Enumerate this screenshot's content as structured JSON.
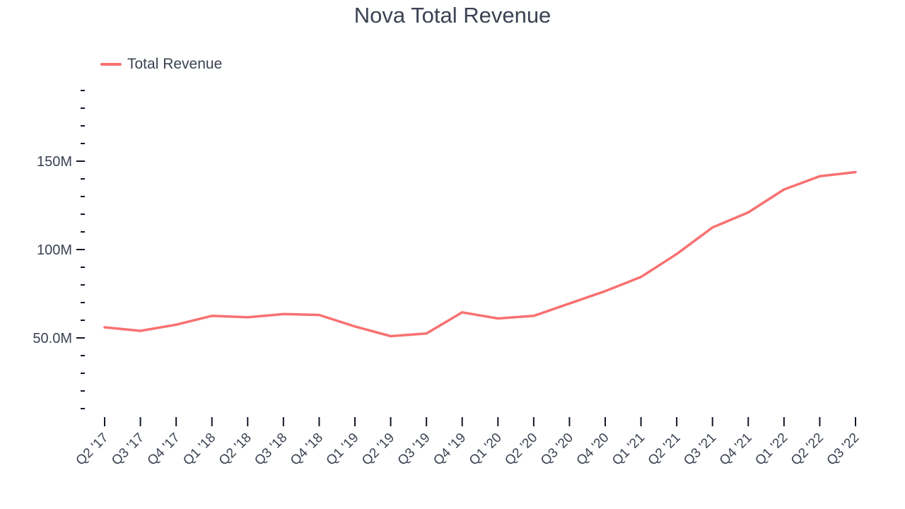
{
  "chart_data": {
    "type": "line",
    "title": "Nova  Total Revenue",
    "xlabel": "",
    "ylabel": "",
    "categories": [
      "Q2 '17",
      "Q3 '17",
      "Q4 '17",
      "Q1 '18",
      "Q2 '18",
      "Q3 '18",
      "Q4 '18",
      "Q1 '19",
      "Q2 '19",
      "Q3 '19",
      "Q4 '19",
      "Q1 '20",
      "Q2 '20",
      "Q3 '20",
      "Q4 '20",
      "Q1 '21",
      "Q2 '21",
      "Q3 '21",
      "Q4 '21",
      "Q1 '22",
      "Q2 '22",
      "Q3 '22"
    ],
    "series": [
      {
        "name": "Total Revenue",
        "color": "#f87171",
        "values": [
          56.0,
          54.0,
          57.5,
          62.5,
          61.7,
          63.5,
          63.0,
          56.5,
          51.0,
          52.5,
          64.5,
          61.0,
          62.5,
          69.5,
          76.5,
          84.5,
          97.5,
          112.5,
          121.0,
          134.0,
          141.5,
          143.8
        ]
      }
    ],
    "ylim": [
      10,
      190
    ],
    "yticks_major": [
      50,
      100,
      150
    ],
    "ytick_labels": [
      "50.0M",
      "100M",
      "150M"
    ],
    "yticks_minor_step": 10,
    "grid": false,
    "legend_position": "top-left"
  }
}
